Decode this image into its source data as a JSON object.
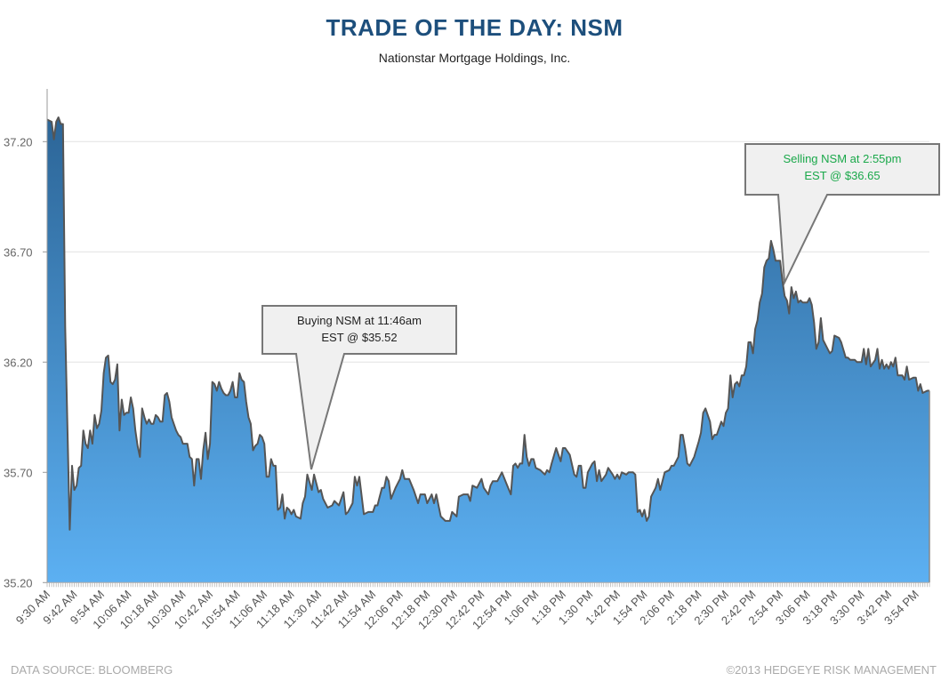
{
  "header": {
    "title": "TRADE OF THE DAY: NSM",
    "subtitle": "Nationstar Mortgage Holdings, Inc."
  },
  "footer": {
    "source": "DATA SOURCE: BLOOMBERG",
    "copyright": "©2013 HEDGEYE RISK MANAGEMENT"
  },
  "colors": {
    "title": "#1d4f7c",
    "fill_top": "#2c6597",
    "fill_bottom": "#5cb0f2",
    "line": "#555555",
    "sell_text": "#1aa84a",
    "buy_text": "#222222"
  },
  "chart_data": {
    "type": "area",
    "title": "TRADE OF THE DAY: NSM",
    "subtitle": "Nationstar Mortgage Holdings, Inc.",
    "xlabel": "",
    "ylabel": "",
    "ylim": [
      35.2,
      37.45
    ],
    "xlim": [
      "09:30",
      "16:00"
    ],
    "y_ticks": [
      "35.20",
      "35.70",
      "36.20",
      "36.70",
      "37.20"
    ],
    "x_ticks": [
      "9:30 AM",
      "9:42 AM",
      "9:54 AM",
      "10:06 AM",
      "10:18 AM",
      "10:30 AM",
      "10:42 AM",
      "10:54 AM",
      "11:06 AM",
      "11:18 AM",
      "11:30 AM",
      "11:42 AM",
      "11:54 AM",
      "12:06 PM",
      "12:18 PM",
      "12:30 PM",
      "12:42 PM",
      "12:54 PM",
      "1:06 PM",
      "1:18 PM",
      "1:30 PM",
      "1:42 PM",
      "1:54 PM",
      "2:06 PM",
      "2:18 PM",
      "2:30 PM",
      "2:42 PM",
      "2:54 PM",
      "3:06 PM",
      "3:18 PM",
      "3:30 PM",
      "3:42 PM",
      "3:54 PM"
    ],
    "grid": "horizontal",
    "annotations": [
      {
        "id": "buy",
        "text_line1": "Buying NSM at 11:46am",
        "text_line2": "EST @ $35.52"
      },
      {
        "id": "sell",
        "text_line1": "Selling NSM at 2:55pm",
        "text_line2": "EST @ $36.65"
      }
    ],
    "points": [
      [
        "09:30",
        37.3
      ],
      [
        "09:32",
        37.29
      ],
      [
        "09:33",
        37.21
      ],
      [
        "09:34",
        37.29
      ],
      [
        "09:35",
        37.31
      ],
      [
        "09:36",
        37.28
      ],
      [
        "09:37",
        37.28
      ],
      [
        "09:38",
        36.36
      ],
      [
        "09:40",
        35.44
      ],
      [
        "09:41",
        35.73
      ],
      [
        "09:42",
        35.62
      ],
      [
        "09:43",
        35.64
      ],
      [
        "09:44",
        35.72
      ],
      [
        "09:45",
        35.73
      ],
      [
        "09:46",
        35.89
      ],
      [
        "09:47",
        35.83
      ],
      [
        "09:48",
        35.81
      ],
      [
        "09:49",
        35.89
      ],
      [
        "09:50",
        35.83
      ],
      [
        "09:51",
        35.96
      ],
      [
        "09:52",
        35.9
      ],
      [
        "09:53",
        35.92
      ],
      [
        "09:54",
        35.98
      ],
      [
        "09:55",
        36.15
      ],
      [
        "09:56",
        36.22
      ],
      [
        "09:57",
        36.23
      ],
      [
        "09:58",
        36.11
      ],
      [
        "09:59",
        36.1
      ],
      [
        "10:00",
        36.12
      ],
      [
        "10:01",
        36.19
      ],
      [
        "10:02",
        35.89
      ],
      [
        "10:03",
        36.03
      ],
      [
        "10:04",
        35.96
      ],
      [
        "10:05",
        35.97
      ],
      [
        "10:06",
        35.97
      ],
      [
        "10:07",
        36.04
      ],
      [
        "10:08",
        35.99
      ],
      [
        "10:09",
        35.89
      ],
      [
        "10:10",
        35.82
      ],
      [
        "10:11",
        35.77
      ],
      [
        "10:12",
        35.99
      ],
      [
        "10:13",
        35.95
      ],
      [
        "10:14",
        35.92
      ],
      [
        "10:15",
        35.94
      ],
      [
        "10:16",
        35.92
      ],
      [
        "10:17",
        35.92
      ],
      [
        "10:18",
        35.96
      ],
      [
        "10:19",
        35.95
      ],
      [
        "10:20",
        35.93
      ],
      [
        "10:21",
        35.93
      ],
      [
        "10:22",
        36.05
      ],
      [
        "10:23",
        36.06
      ],
      [
        "10:24",
        36.02
      ],
      [
        "10:25",
        35.95
      ],
      [
        "10:26",
        35.92
      ],
      [
        "10:27",
        35.89
      ],
      [
        "10:28",
        35.87
      ],
      [
        "10:29",
        35.86
      ],
      [
        "10:30",
        35.83
      ],
      [
        "10:31",
        35.83
      ],
      [
        "10:32",
        35.83
      ],
      [
        "10:33",
        35.77
      ],
      [
        "10:34",
        35.76
      ],
      [
        "10:35",
        35.64
      ],
      [
        "10:36",
        35.76
      ],
      [
        "10:37",
        35.76
      ],
      [
        "10:38",
        35.67
      ],
      [
        "10:39",
        35.8
      ],
      [
        "10:40",
        35.88
      ],
      [
        "10:41",
        35.76
      ],
      [
        "10:42",
        35.83
      ],
      [
        "10:43",
        36.11
      ],
      [
        "10:44",
        36.1
      ],
      [
        "10:45",
        36.07
      ],
      [
        "10:46",
        36.11
      ],
      [
        "10:47",
        36.08
      ],
      [
        "10:48",
        36.06
      ],
      [
        "10:49",
        36.05
      ],
      [
        "10:50",
        36.05
      ],
      [
        "10:51",
        36.07
      ],
      [
        "10:52",
        36.11
      ],
      [
        "10:53",
        36.04
      ],
      [
        "10:54",
        36.04
      ],
      [
        "10:55",
        36.15
      ],
      [
        "10:56",
        36.12
      ],
      [
        "10:57",
        36.11
      ],
      [
        "10:58",
        36.02
      ],
      [
        "10:59",
        35.95
      ],
      [
        "11:00",
        35.92
      ],
      [
        "11:01",
        35.8
      ],
      [
        "11:02",
        35.82
      ],
      [
        "11:03",
        35.83
      ],
      [
        "11:04",
        35.87
      ],
      [
        "11:05",
        35.86
      ],
      [
        "11:06",
        35.83
      ],
      [
        "11:07",
        35.68
      ],
      [
        "11:08",
        35.68
      ],
      [
        "11:09",
        35.76
      ],
      [
        "11:10",
        35.73
      ],
      [
        "11:11",
        35.73
      ],
      [
        "11:12",
        35.53
      ],
      [
        "11:13",
        35.54
      ],
      [
        "11:14",
        35.6
      ],
      [
        "11:15",
        35.49
      ],
      [
        "11:16",
        35.54
      ],
      [
        "11:17",
        35.53
      ],
      [
        "11:18",
        35.51
      ],
      [
        "11:19",
        35.53
      ],
      [
        "11:20",
        35.5
      ],
      [
        "11:22",
        35.49
      ],
      [
        "11:23",
        35.56
      ],
      [
        "11:24",
        35.59
      ],
      [
        "11:25",
        35.69
      ],
      [
        "11:27",
        35.62
      ],
      [
        "11:28",
        35.69
      ],
      [
        "11:30",
        35.61
      ],
      [
        "11:31",
        35.62
      ],
      [
        "11:32",
        35.58
      ],
      [
        "11:34",
        35.54
      ],
      [
        "11:36",
        35.55
      ],
      [
        "11:37",
        35.57
      ],
      [
        "11:39",
        35.55
      ],
      [
        "11:41",
        35.61
      ],
      [
        "11:42",
        35.51
      ],
      [
        "11:43",
        35.52
      ],
      [
        "11:45",
        35.56
      ],
      [
        "11:46",
        35.68
      ],
      [
        "11:47",
        35.64
      ],
      [
        "11:48",
        35.68
      ],
      [
        "11:50",
        35.51
      ],
      [
        "11:52",
        35.52
      ],
      [
        "11:54",
        35.52
      ],
      [
        "11:55",
        35.55
      ],
      [
        "11:56",
        35.55
      ],
      [
        "11:57",
        35.59
      ],
      [
        "11:58",
        35.63
      ],
      [
        "11:59",
        35.63
      ],
      [
        "12:00",
        35.68
      ],
      [
        "12:01",
        35.66
      ],
      [
        "12:02",
        35.58
      ],
      [
        "12:04",
        35.63
      ],
      [
        "12:06",
        35.67
      ],
      [
        "12:07",
        35.71
      ],
      [
        "12:08",
        35.67
      ],
      [
        "12:10",
        35.67
      ],
      [
        "12:12",
        35.62
      ],
      [
        "12:14",
        35.56
      ],
      [
        "12:15",
        35.6
      ],
      [
        "12:17",
        35.6
      ],
      [
        "12:18",
        35.56
      ],
      [
        "12:20",
        35.6
      ],
      [
        "12:21",
        35.56
      ],
      [
        "12:22",
        35.6
      ],
      [
        "12:24",
        35.5
      ],
      [
        "12:26",
        35.48
      ],
      [
        "12:28",
        35.48
      ],
      [
        "12:29",
        35.52
      ],
      [
        "12:31",
        35.5
      ],
      [
        "12:32",
        35.59
      ],
      [
        "12:34",
        35.6
      ],
      [
        "12:36",
        35.6
      ],
      [
        "12:37",
        35.57
      ],
      [
        "12:38",
        35.64
      ],
      [
        "12:40",
        35.63
      ],
      [
        "12:42",
        35.67
      ],
      [
        "12:43",
        35.63
      ],
      [
        "12:45",
        35.6
      ],
      [
        "12:46",
        35.64
      ],
      [
        "12:47",
        35.66
      ],
      [
        "12:49",
        35.66
      ],
      [
        "12:51",
        35.7
      ],
      [
        "12:53",
        35.65
      ],
      [
        "12:55",
        35.6
      ],
      [
        "12:56",
        35.73
      ],
      [
        "12:57",
        35.74
      ],
      [
        "12:58",
        35.72
      ],
      [
        "12:59",
        35.74
      ],
      [
        "13:00",
        35.74
      ],
      [
        "13:01",
        35.87
      ],
      [
        "13:02",
        35.77
      ],
      [
        "13:03",
        35.73
      ],
      [
        "13:04",
        35.76
      ],
      [
        "13:05",
        35.76
      ],
      [
        "13:06",
        35.72
      ],
      [
        "13:08",
        35.71
      ],
      [
        "13:10",
        35.69
      ],
      [
        "13:11",
        35.71
      ],
      [
        "13:12",
        35.7
      ],
      [
        "13:13",
        35.74
      ],
      [
        "13:15",
        35.81
      ],
      [
        "13:17",
        35.75
      ],
      [
        "13:18",
        35.81
      ],
      [
        "13:19",
        35.81
      ],
      [
        "13:21",
        35.78
      ],
      [
        "13:23",
        35.69
      ],
      [
        "13:24",
        35.68
      ],
      [
        "13:25",
        35.73
      ],
      [
        "13:26",
        35.73
      ],
      [
        "13:27",
        35.63
      ],
      [
        "13:28",
        35.63
      ],
      [
        "13:29",
        35.7
      ],
      [
        "13:31",
        35.74
      ],
      [
        "13:32",
        35.75
      ],
      [
        "13:33",
        35.66
      ],
      [
        "13:34",
        35.71
      ],
      [
        "13:35",
        35.66
      ],
      [
        "13:37",
        35.69
      ],
      [
        "13:38",
        35.72
      ],
      [
        "13:40",
        35.69
      ],
      [
        "13:41",
        35.67
      ],
      [
        "13:42",
        35.69
      ],
      [
        "13:43",
        35.67
      ],
      [
        "13:44",
        35.7
      ],
      [
        "13:46",
        35.69
      ],
      [
        "13:47",
        35.7
      ],
      [
        "13:49",
        35.7
      ],
      [
        "13:50",
        35.69
      ],
      [
        "13:51",
        35.52
      ],
      [
        "13:52",
        35.53
      ],
      [
        "13:53",
        35.5
      ],
      [
        "13:54",
        35.53
      ],
      [
        "13:55",
        35.48
      ],
      [
        "13:56",
        35.5
      ],
      [
        "13:57",
        35.59
      ],
      [
        "13:59",
        35.63
      ],
      [
        "14:00",
        35.67
      ],
      [
        "14:01",
        35.62
      ],
      [
        "14:03",
        35.7
      ],
      [
        "14:05",
        35.71
      ],
      [
        "14:06",
        35.73
      ],
      [
        "14:07",
        35.73
      ],
      [
        "14:09",
        35.77
      ],
      [
        "14:10",
        35.87
      ],
      [
        "14:11",
        35.87
      ],
      [
        "14:12",
        35.81
      ],
      [
        "14:13",
        35.74
      ],
      [
        "14:14",
        35.73
      ],
      [
        "14:16",
        35.77
      ],
      [
        "14:18",
        35.84
      ],
      [
        "14:19",
        35.88
      ],
      [
        "14:20",
        35.97
      ],
      [
        "14:21",
        35.99
      ],
      [
        "14:23",
        35.93
      ],
      [
        "14:24",
        35.85
      ],
      [
        "14:25",
        35.87
      ],
      [
        "14:26",
        35.87
      ],
      [
        "14:28",
        35.93
      ],
      [
        "14:29",
        35.91
      ],
      [
        "14:30",
        35.97
      ],
      [
        "14:31",
        35.99
      ],
      [
        "14:32",
        36.14
      ],
      [
        "14:33",
        36.04
      ],
      [
        "14:34",
        36.1
      ],
      [
        "14:35",
        36.11
      ],
      [
        "14:36",
        36.09
      ],
      [
        "14:37",
        36.14
      ],
      [
        "14:38",
        36.14
      ],
      [
        "14:39",
        36.18
      ],
      [
        "14:40",
        36.29
      ],
      [
        "14:41",
        36.29
      ],
      [
        "14:42",
        36.24
      ],
      [
        "14:43",
        36.35
      ],
      [
        "14:44",
        36.39
      ],
      [
        "14:45",
        36.47
      ],
      [
        "14:46",
        36.51
      ],
      [
        "14:47",
        36.63
      ],
      [
        "14:48",
        36.66
      ],
      [
        "14:49",
        36.67
      ],
      [
        "14:50",
        36.75
      ],
      [
        "14:51",
        36.71
      ],
      [
        "14:52",
        36.66
      ],
      [
        "14:54",
        36.66
      ],
      [
        "14:55",
        36.57
      ],
      [
        "14:56",
        36.5
      ],
      [
        "14:57",
        36.48
      ],
      [
        "14:58",
        36.42
      ],
      [
        "14:59",
        36.54
      ],
      [
        "15:00",
        36.49
      ],
      [
        "15:01",
        36.52
      ],
      [
        "15:02",
        36.47
      ],
      [
        "15:03",
        36.48
      ],
      [
        "15:04",
        36.47
      ],
      [
        "15:06",
        36.47
      ],
      [
        "15:07",
        36.49
      ],
      [
        "15:08",
        36.46
      ],
      [
        "15:09",
        36.38
      ],
      [
        "15:10",
        36.26
      ],
      [
        "15:11",
        36.29
      ],
      [
        "15:12",
        36.4
      ],
      [
        "15:13",
        36.3
      ],
      [
        "15:15",
        36.26
      ],
      [
        "15:16",
        36.24
      ],
      [
        "15:17",
        36.25
      ],
      [
        "15:18",
        36.32
      ],
      [
        "15:20",
        36.31
      ],
      [
        "15:21",
        36.29
      ],
      [
        "15:23",
        36.22
      ],
      [
        "15:24",
        36.22
      ],
      [
        "15:25",
        36.21
      ],
      [
        "15:27",
        36.21
      ],
      [
        "15:28",
        36.2
      ],
      [
        "15:30",
        36.2
      ],
      [
        "15:31",
        36.26
      ],
      [
        "15:32",
        36.19
      ],
      [
        "15:33",
        36.26
      ],
      [
        "15:34",
        36.18
      ],
      [
        "15:36",
        36.21
      ],
      [
        "15:37",
        36.26
      ],
      [
        "15:38",
        36.17
      ],
      [
        "15:39",
        36.21
      ],
      [
        "15:40",
        36.17
      ],
      [
        "15:41",
        36.19
      ],
      [
        "15:42",
        36.17
      ],
      [
        "15:43",
        36.2
      ],
      [
        "15:44",
        36.18
      ],
      [
        "15:45",
        36.22
      ],
      [
        "15:46",
        36.14
      ],
      [
        "15:48",
        36.14
      ],
      [
        "15:49",
        36.12
      ],
      [
        "15:50",
        36.18
      ],
      [
        "15:51",
        36.12
      ],
      [
        "15:53",
        36.13
      ],
      [
        "15:54",
        36.13
      ],
      [
        "15:55",
        36.07
      ],
      [
        "15:56",
        36.1
      ],
      [
        "15:57",
        36.06
      ],
      [
        "15:59",
        36.07
      ],
      [
        "16:00",
        36.07
      ]
    ]
  }
}
